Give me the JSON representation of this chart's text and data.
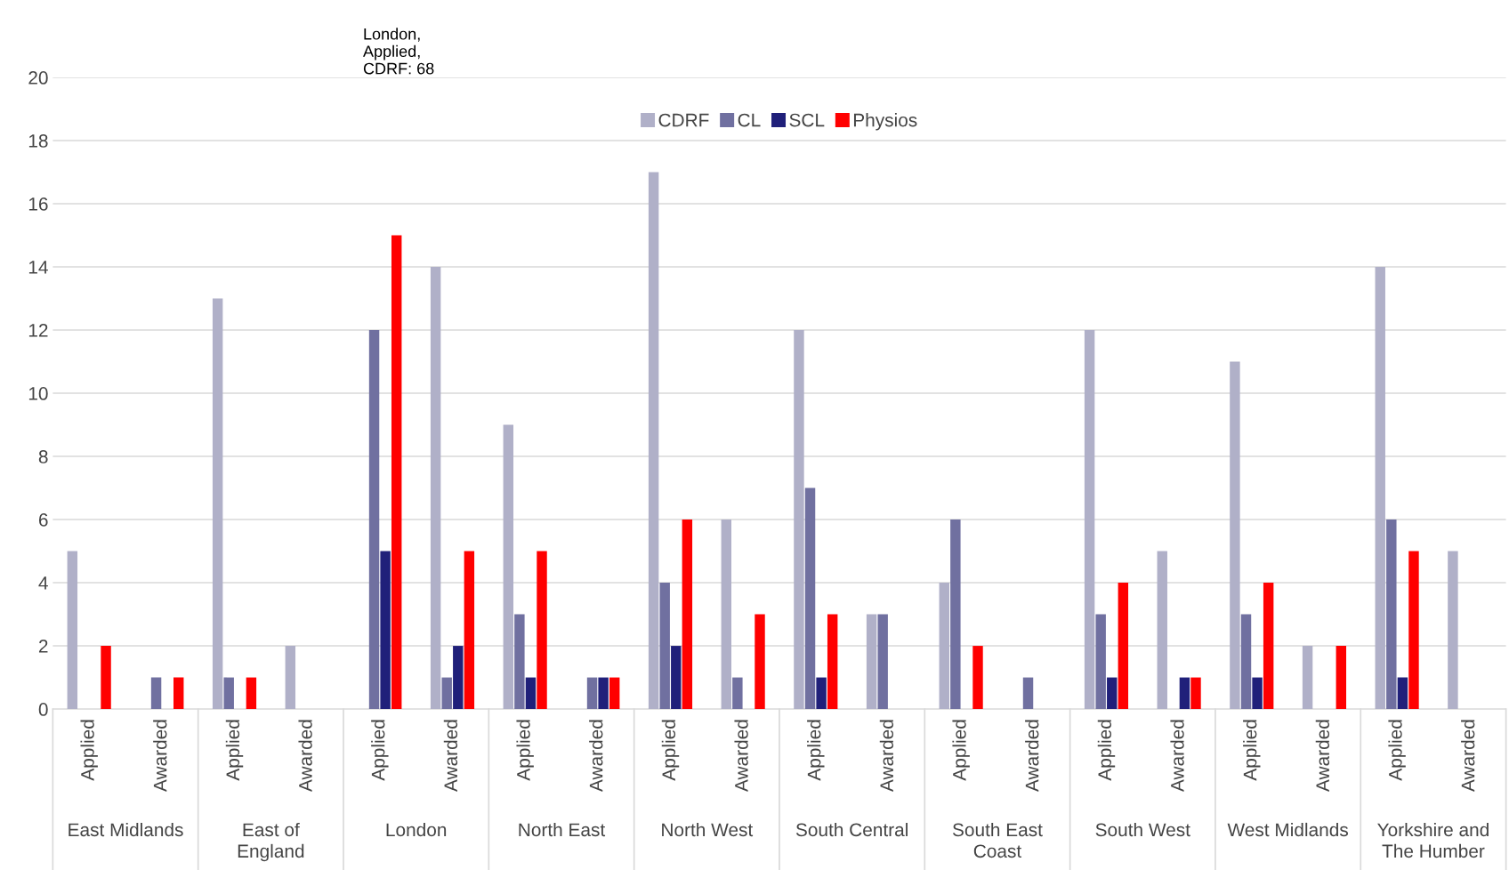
{
  "chart_data": {
    "type": "bar",
    "categories": [
      "Applied",
      "Awarded",
      "Applied",
      "Awarded",
      "Applied",
      "Awarded",
      "Applied",
      "Awarded",
      "Applied",
      "Awarded",
      "Applied",
      "Awarded",
      "Applied",
      "Awarded",
      "Applied",
      "Awarded",
      "Applied",
      "Awarded",
      "Applied",
      "Awarded"
    ],
    "series": [
      {
        "name": "CDRF",
        "color": "#b0b0c8",
        "values": [
          5,
          0,
          13,
          2,
          null,
          14,
          9,
          0,
          17,
          6,
          12,
          3,
          4,
          0,
          12,
          5,
          11,
          2,
          14,
          5
        ]
      },
      {
        "name": "CL",
        "color": "#7070a0",
        "values": [
          0,
          1,
          1,
          0,
          12,
          1,
          3,
          1,
          4,
          1,
          7,
          3,
          6,
          1,
          3,
          0,
          3,
          0,
          6,
          0
        ]
      },
      {
        "name": "SCL",
        "color": "#20207a",
        "values": [
          0,
          0,
          0,
          0,
          5,
          2,
          1,
          1,
          2,
          0,
          1,
          0,
          0,
          0,
          1,
          1,
          1,
          0,
          1,
          0
        ]
      },
      {
        "name": "Physios",
        "color": "#ff0000",
        "values": [
          2,
          1,
          1,
          0,
          15,
          5,
          5,
          1,
          6,
          3,
          3,
          0,
          2,
          0,
          4,
          1,
          4,
          2,
          5,
          0
        ]
      }
    ],
    "annotations": [
      "East Midlands",
      "East of\nEngland",
      "London",
      "North East",
      "North West",
      "South Central",
      "South East\nCoast",
      "South West",
      "West Midlands",
      "Yorkshire and\nThe Humber",
      "London,\nApplied,\nCDRF: 68"
    ],
    "ylim": [
      0,
      20
    ],
    "yticks": [
      0,
      2,
      4,
      6,
      8,
      10,
      12,
      14,
      16,
      18,
      20
    ],
    "grid": "y",
    "legend": "top"
  }
}
